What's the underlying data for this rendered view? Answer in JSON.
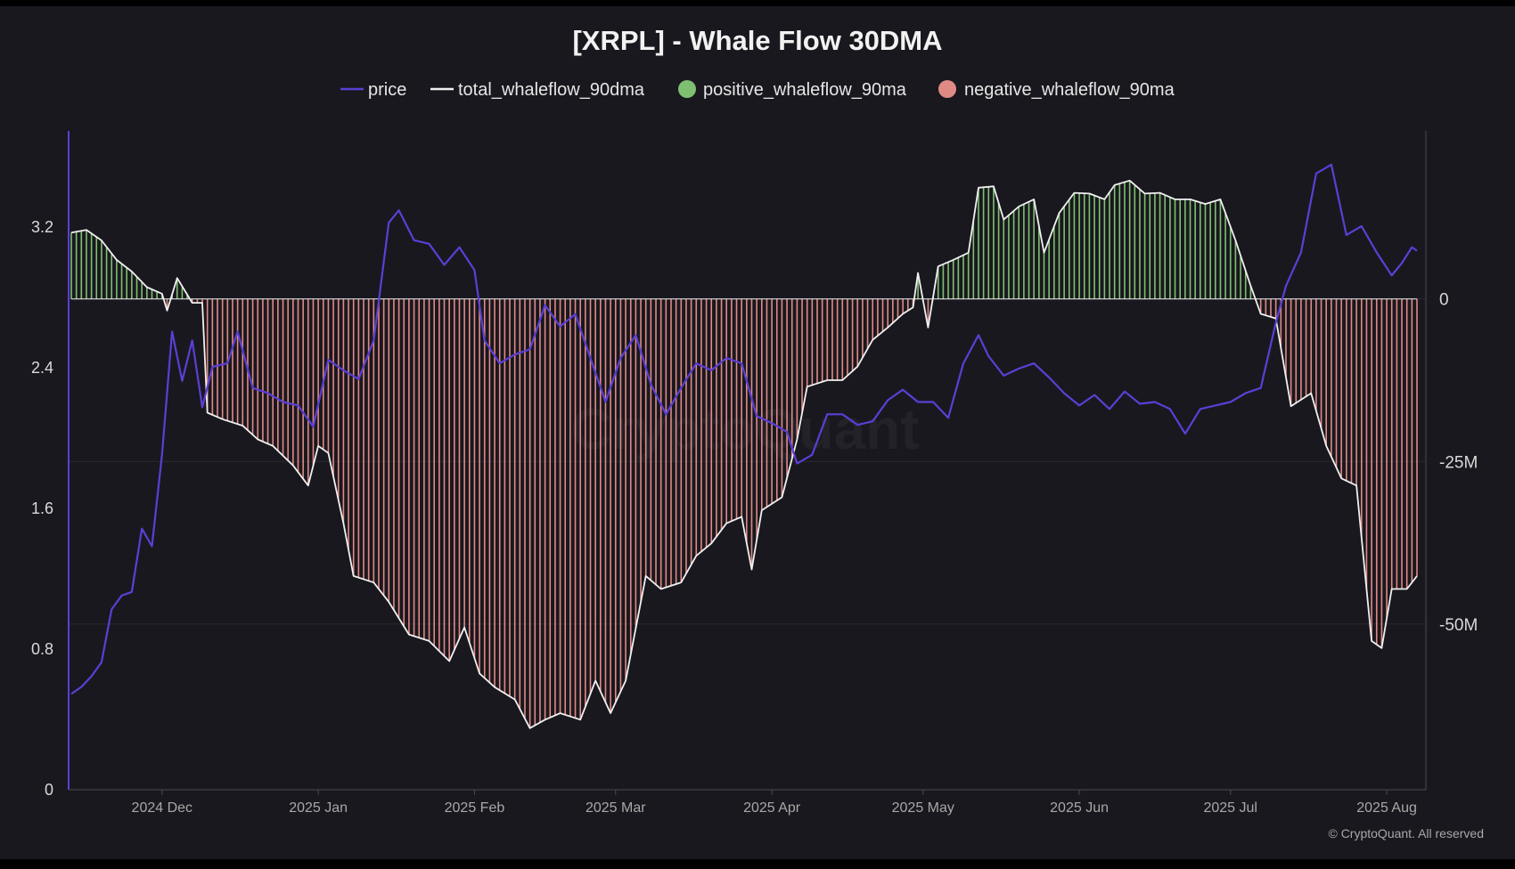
{
  "colors": {
    "background": "#19181e",
    "price": "#5b3fd6",
    "total": "#f0f0f0",
    "positive": "#7fbf72",
    "negative": "#e08a86",
    "grid": "#2b2a31"
  },
  "chart_data": {
    "type": "line",
    "title": "[XRPL] - Whale Flow 30DMA",
    "watermark": "CryptoQuant",
    "credit": "© CryptoQuant. All reserved",
    "legend": [
      {
        "name": "price",
        "marker": "line",
        "color": "#5b3fd6"
      },
      {
        "name": "total_whaleflow_90dma",
        "marker": "line",
        "color": "#f0f0f0"
      },
      {
        "name": "positive_whaleflow_90ma",
        "marker": "dot",
        "color": "#7fbf72"
      },
      {
        "name": "negative_whaleflow_90ma",
        "marker": "dot",
        "color": "#e08a86"
      }
    ],
    "legend_position": "top",
    "grid": true,
    "x_axis": {
      "type": "date",
      "range": [
        "2024-11-13",
        "2025-08-07"
      ],
      "tick_labels": [
        "2024 Dec",
        "2025 Jan",
        "2025 Feb",
        "2025 Mar",
        "2025 Apr",
        "2025 May",
        "2025 Jun",
        "2025 Jul",
        "2025 Aug"
      ],
      "tick_dates": [
        "2024-12-01",
        "2025-01-01",
        "2025-02-01",
        "2025-03-01",
        "2025-04-01",
        "2025-05-01",
        "2025-06-01",
        "2025-07-01",
        "2025-08-01"
      ]
    },
    "y_left": {
      "range": [
        0,
        3.6
      ],
      "tick_labels": [
        "0",
        "0.8",
        "1.6",
        "2.4",
        "3.2"
      ],
      "ticks": [
        0,
        0.8,
        1.6,
        2.4,
        3.2
      ]
    },
    "y_right": {
      "range": [
        -70000000,
        22000000
      ],
      "tick_labels": [
        "0",
        "-25M",
        "-50M"
      ],
      "ticks": [
        0,
        -25000000,
        -50000000
      ]
    },
    "series": [
      {
        "name": "price",
        "axis": "left",
        "points": [
          [
            "2024-11-13",
            0.54
          ],
          [
            "2024-11-15",
            0.58
          ],
          [
            "2024-11-17",
            0.64
          ],
          [
            "2024-11-19",
            0.72
          ],
          [
            "2024-11-21",
            1.02
          ],
          [
            "2024-11-23",
            1.1
          ],
          [
            "2024-11-25",
            1.12
          ],
          [
            "2024-11-27",
            1.48
          ],
          [
            "2024-11-29",
            1.38
          ],
          [
            "2024-12-01",
            1.9
          ],
          [
            "2024-12-03",
            2.6
          ],
          [
            "2024-12-05",
            2.32
          ],
          [
            "2024-12-07",
            2.55
          ],
          [
            "2024-12-09",
            2.17
          ],
          [
            "2024-12-11",
            2.4
          ],
          [
            "2024-12-14",
            2.42
          ],
          [
            "2024-12-16",
            2.6
          ],
          [
            "2024-12-19",
            2.28
          ],
          [
            "2024-12-22",
            2.25
          ],
          [
            "2024-12-25",
            2.2
          ],
          [
            "2024-12-28",
            2.18
          ],
          [
            "2024-12-31",
            2.06
          ],
          [
            "2025-01-03",
            2.44
          ],
          [
            "2025-01-06",
            2.38
          ],
          [
            "2025-01-09",
            2.33
          ],
          [
            "2025-01-12",
            2.55
          ],
          [
            "2025-01-15",
            3.22
          ],
          [
            "2025-01-17",
            3.29
          ],
          [
            "2025-01-20",
            3.12
          ],
          [
            "2025-01-23",
            3.1
          ],
          [
            "2025-01-26",
            2.98
          ],
          [
            "2025-01-29",
            3.08
          ],
          [
            "2025-02-01",
            2.95
          ],
          [
            "2025-02-03",
            2.55
          ],
          [
            "2025-02-06",
            2.42
          ],
          [
            "2025-02-09",
            2.47
          ],
          [
            "2025-02-12",
            2.5
          ],
          [
            "2025-02-15",
            2.75
          ],
          [
            "2025-02-18",
            2.63
          ],
          [
            "2025-02-21",
            2.7
          ],
          [
            "2025-02-24",
            2.45
          ],
          [
            "2025-02-27",
            2.2
          ],
          [
            "2025-03-02",
            2.45
          ],
          [
            "2025-03-05",
            2.58
          ],
          [
            "2025-03-08",
            2.3
          ],
          [
            "2025-03-11",
            2.13
          ],
          [
            "2025-03-14",
            2.28
          ],
          [
            "2025-03-17",
            2.42
          ],
          [
            "2025-03-20",
            2.38
          ],
          [
            "2025-03-23",
            2.45
          ],
          [
            "2025-03-26",
            2.42
          ],
          [
            "2025-03-29",
            2.12
          ],
          [
            "2025-04-01",
            2.08
          ],
          [
            "2025-04-04",
            2.03
          ],
          [
            "2025-04-06",
            1.85
          ],
          [
            "2025-04-09",
            1.9
          ],
          [
            "2025-04-12",
            2.13
          ],
          [
            "2025-04-15",
            2.13
          ],
          [
            "2025-04-18",
            2.07
          ],
          [
            "2025-04-21",
            2.09
          ],
          [
            "2025-04-24",
            2.21
          ],
          [
            "2025-04-27",
            2.27
          ],
          [
            "2025-04-30",
            2.2
          ],
          [
            "2025-05-03",
            2.2
          ],
          [
            "2025-05-06",
            2.11
          ],
          [
            "2025-05-09",
            2.42
          ],
          [
            "2025-05-12",
            2.58
          ],
          [
            "2025-05-14",
            2.46
          ],
          [
            "2025-05-17",
            2.35
          ],
          [
            "2025-05-20",
            2.39
          ],
          [
            "2025-05-23",
            2.42
          ],
          [
            "2025-05-26",
            2.34
          ],
          [
            "2025-05-29",
            2.25
          ],
          [
            "2025-06-01",
            2.18
          ],
          [
            "2025-06-04",
            2.24
          ],
          [
            "2025-06-07",
            2.16
          ],
          [
            "2025-06-10",
            2.26
          ],
          [
            "2025-06-13",
            2.19
          ],
          [
            "2025-06-16",
            2.2
          ],
          [
            "2025-06-19",
            2.16
          ],
          [
            "2025-06-22",
            2.02
          ],
          [
            "2025-06-25",
            2.16
          ],
          [
            "2025-06-28",
            2.18
          ],
          [
            "2025-07-01",
            2.2
          ],
          [
            "2025-07-04",
            2.25
          ],
          [
            "2025-07-07",
            2.28
          ],
          [
            "2025-07-10",
            2.65
          ],
          [
            "2025-07-12",
            2.86
          ],
          [
            "2025-07-15",
            3.05
          ],
          [
            "2025-07-18",
            3.5
          ],
          [
            "2025-07-21",
            3.55
          ],
          [
            "2025-07-24",
            3.15
          ],
          [
            "2025-07-27",
            3.2
          ],
          [
            "2025-07-30",
            3.05
          ],
          [
            "2025-08-02",
            2.92
          ],
          [
            "2025-08-04",
            2.99
          ],
          [
            "2025-08-06",
            3.08
          ],
          [
            "2025-08-07",
            3.06
          ]
        ]
      },
      {
        "name": "total_whaleflow_90dma",
        "axis": "right",
        "points": [
          [
            "2024-11-13",
            10200000
          ],
          [
            "2024-11-16",
            10600000
          ],
          [
            "2024-11-19",
            9000000
          ],
          [
            "2024-11-22",
            6000000
          ],
          [
            "2024-11-25",
            4200000
          ],
          [
            "2024-11-28",
            1800000
          ],
          [
            "2024-12-01",
            800000
          ],
          [
            "2024-12-02",
            -1800000
          ],
          [
            "2024-12-04",
            3200000
          ],
          [
            "2024-12-07",
            -600000
          ],
          [
            "2024-12-09",
            -600000
          ],
          [
            "2024-12-10",
            -17500000
          ],
          [
            "2024-12-13",
            -18500000
          ],
          [
            "2024-12-17",
            -19500000
          ],
          [
            "2024-12-20",
            -21600000
          ],
          [
            "2024-12-23",
            -22600000
          ],
          [
            "2024-12-27",
            -25600000
          ],
          [
            "2024-12-30",
            -28700000
          ],
          [
            "2025-01-01",
            -22600000
          ],
          [
            "2025-01-03",
            -23700000
          ],
          [
            "2025-01-06",
            -34500000
          ],
          [
            "2025-01-08",
            -42600000
          ],
          [
            "2025-01-12",
            -43600000
          ],
          [
            "2025-01-15",
            -46600000
          ],
          [
            "2025-01-19",
            -51600000
          ],
          [
            "2025-01-23",
            -52600000
          ],
          [
            "2025-01-27",
            -55700000
          ],
          [
            "2025-01-30",
            -50500000
          ],
          [
            "2025-02-02",
            -57600000
          ],
          [
            "2025-02-05",
            -59700000
          ],
          [
            "2025-02-09",
            -61600000
          ],
          [
            "2025-02-12",
            -66000000
          ],
          [
            "2025-02-15",
            -64700000
          ],
          [
            "2025-02-18",
            -63700000
          ],
          [
            "2025-02-22",
            -64700000
          ],
          [
            "2025-02-25",
            -58700000
          ],
          [
            "2025-02-28",
            -63700000
          ],
          [
            "2025-03-03",
            -58700000
          ],
          [
            "2025-03-07",
            -42600000
          ],
          [
            "2025-03-10",
            -44600000
          ],
          [
            "2025-03-14",
            -43600000
          ],
          [
            "2025-03-17",
            -39500000
          ],
          [
            "2025-03-20",
            -37600000
          ],
          [
            "2025-03-23",
            -34500000
          ],
          [
            "2025-03-26",
            -33500000
          ],
          [
            "2025-03-28",
            -41600000
          ],
          [
            "2025-03-30",
            -32500000
          ],
          [
            "2025-04-03",
            -30500000
          ],
          [
            "2025-04-06",
            -21600000
          ],
          [
            "2025-04-08",
            -13500000
          ],
          [
            "2025-04-12",
            -12500000
          ],
          [
            "2025-04-15",
            -12500000
          ],
          [
            "2025-04-18",
            -10400000
          ],
          [
            "2025-04-21",
            -6300000
          ],
          [
            "2025-04-24",
            -4400000
          ],
          [
            "2025-04-27",
            -2300000
          ],
          [
            "2025-04-29",
            -1300000
          ],
          [
            "2025-04-30",
            4000000
          ],
          [
            "2025-05-02",
            -4400000
          ],
          [
            "2025-05-04",
            5000000
          ],
          [
            "2025-05-07",
            6000000
          ],
          [
            "2025-05-10",
            7100000
          ],
          [
            "2025-05-12",
            17100000
          ],
          [
            "2025-05-15",
            17300000
          ],
          [
            "2025-05-17",
            12200000
          ],
          [
            "2025-05-20",
            14200000
          ],
          [
            "2025-05-23",
            15300000
          ],
          [
            "2025-05-25",
            7100000
          ],
          [
            "2025-05-28",
            13200000
          ],
          [
            "2025-05-31",
            16300000
          ],
          [
            "2025-06-03",
            16200000
          ],
          [
            "2025-06-06",
            15300000
          ],
          [
            "2025-06-08",
            17500000
          ],
          [
            "2025-06-11",
            18200000
          ],
          [
            "2025-06-14",
            16200000
          ],
          [
            "2025-06-17",
            16300000
          ],
          [
            "2025-06-20",
            15300000
          ],
          [
            "2025-06-23",
            15300000
          ],
          [
            "2025-06-26",
            14600000
          ],
          [
            "2025-06-29",
            15300000
          ],
          [
            "2025-07-02",
            9000000
          ],
          [
            "2025-07-05",
            2000000
          ],
          [
            "2025-07-07",
            -2300000
          ],
          [
            "2025-07-10",
            -3000000
          ],
          [
            "2025-07-13",
            -16500000
          ],
          [
            "2025-07-17",
            -14500000
          ],
          [
            "2025-07-20",
            -22600000
          ],
          [
            "2025-07-23",
            -27600000
          ],
          [
            "2025-07-26",
            -28700000
          ],
          [
            "2025-07-29",
            -52600000
          ],
          [
            "2025-07-31",
            -53700000
          ],
          [
            "2025-08-02",
            -44600000
          ],
          [
            "2025-08-05",
            -44600000
          ],
          [
            "2025-08-07",
            -42600000
          ]
        ]
      }
    ]
  }
}
